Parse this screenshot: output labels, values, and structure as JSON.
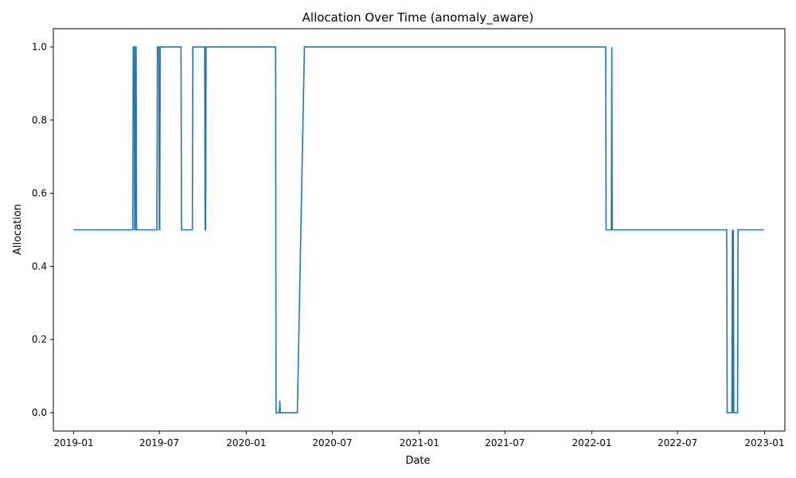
{
  "chart_data": {
    "type": "line",
    "title": "Allocation Over Time (anomaly_aware)",
    "xlabel": "Date",
    "ylabel": "Allocation",
    "xlim": [
      "2018-11-19",
      "2023-02-13"
    ],
    "ylim": [
      -0.05,
      1.05
    ],
    "grid": false,
    "x_ticks": [
      "2019-01",
      "2019-07",
      "2020-01",
      "2020-07",
      "2021-01",
      "2021-07",
      "2022-01",
      "2022-07",
      "2023-01"
    ],
    "y_ticks": [
      "0.0",
      "0.2",
      "0.4",
      "0.6",
      "0.8",
      "1.0"
    ],
    "series": [
      {
        "color": "#1f77b4",
        "points": [
          [
            "2019-01-01",
            0.5
          ],
          [
            "2019-05-06",
            0.5
          ],
          [
            "2019-05-07",
            1.0
          ],
          [
            "2019-05-09",
            1.0
          ],
          [
            "2019-05-10",
            0.5
          ],
          [
            "2019-05-11",
            0.5
          ],
          [
            "2019-05-12",
            1.0
          ],
          [
            "2019-05-13",
            1.0
          ],
          [
            "2019-05-14",
            0.5
          ],
          [
            "2019-06-26",
            0.5
          ],
          [
            "2019-06-27",
            1.0
          ],
          [
            "2019-06-30",
            1.0
          ],
          [
            "2019-07-01",
            0.5
          ],
          [
            "2019-07-02",
            0.5
          ],
          [
            "2019-07-03",
            1.0
          ],
          [
            "2019-08-16",
            1.0
          ],
          [
            "2019-08-17",
            0.5
          ],
          [
            "2019-09-09",
            0.5
          ],
          [
            "2019-09-10",
            1.0
          ],
          [
            "2019-10-05",
            1.0
          ],
          [
            "2019-10-06",
            0.5
          ],
          [
            "2019-10-07",
            0.5
          ],
          [
            "2019-10-08",
            1.0
          ],
          [
            "2020-03-03",
            1.0
          ],
          [
            "2020-03-04",
            0.0
          ],
          [
            "2020-03-11",
            0.0
          ],
          [
            "2020-03-12",
            0.033
          ],
          [
            "2020-03-13",
            0.0
          ],
          [
            "2020-04-18",
            0.0
          ],
          [
            "2020-05-03",
            1.0
          ],
          [
            "2022-01-30",
            1.0
          ],
          [
            "2022-01-31",
            0.5
          ],
          [
            "2022-02-11",
            0.5
          ],
          [
            "2022-02-12",
            1.0
          ],
          [
            "2022-02-13",
            0.5
          ],
          [
            "2022-10-13",
            0.5
          ],
          [
            "2022-10-14",
            0.0
          ],
          [
            "2022-10-24",
            0.0
          ],
          [
            "2022-10-25",
            0.5
          ],
          [
            "2022-10-26",
            0.0
          ],
          [
            "2022-10-27",
            0.5
          ],
          [
            "2022-10-28",
            0.0
          ],
          [
            "2022-11-05",
            0.0
          ],
          [
            "2022-11-06",
            0.5
          ],
          [
            "2022-12-31",
            0.5
          ]
        ]
      }
    ]
  }
}
